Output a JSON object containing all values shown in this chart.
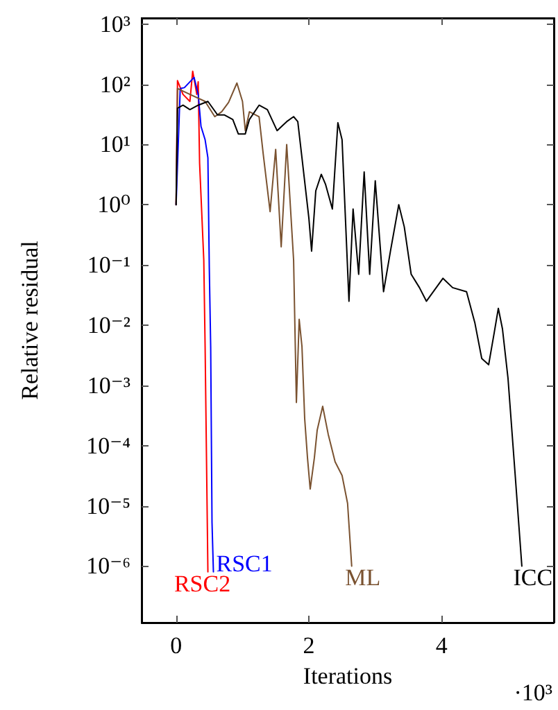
{
  "chart_data": {
    "type": "line",
    "xlabel": "Iterations",
    "ylabel": "Relative residual",
    "log": "y",
    "grid": false,
    "legend": false,
    "marker": "none",
    "line_style": "solid",
    "xlim": [
      -0.52,
      5.69
    ],
    "xticks": [
      0,
      2,
      4
    ],
    "ylim": [
      1.15e-07,
      1260
    ],
    "yticks": [
      {
        "value": 1e-06,
        "label": "10⁻⁶"
      },
      {
        "value": 1e-05,
        "label": "10⁻⁵"
      },
      {
        "value": 0.0001,
        "label": "10⁻⁴"
      },
      {
        "value": 0.001,
        "label": "10⁻³"
      },
      {
        "value": 0.01,
        "label": "10⁻²"
      },
      {
        "value": 0.1,
        "label": "10⁻¹"
      },
      {
        "value": 1,
        "label": "10⁰"
      },
      {
        "value": 10,
        "label": "10¹"
      },
      {
        "value": 100,
        "label": "10²"
      },
      {
        "value": 1000,
        "label": "10³"
      }
    ],
    "annotations": [
      "·10³"
    ],
    "series": [
      {
        "name": "ICC",
        "color": "#000000",
        "x": [
          0,
          0.021,
          0.104,
          0.208,
          0.333,
          0.479,
          0.625,
          0.729,
          0.854,
          0.937,
          1.042,
          1.104,
          1.25,
          1.375,
          1.521,
          1.666,
          1.77,
          1.833,
          1.896,
          2.0,
          2.041,
          2.104,
          2.187,
          2.25,
          2.354,
          2.437,
          2.5,
          2.604,
          2.666,
          2.75,
          2.833,
          2.916,
          3.0,
          3.125,
          3.229,
          3.354,
          3.437,
          3.541,
          3.666,
          3.771,
          4.02,
          4.166,
          4.375,
          4.5,
          4.604,
          4.708,
          4.791,
          4.854,
          4.916,
          5.0,
          5.104,
          5.208
        ],
        "values": [
          1,
          40,
          45,
          38,
          45,
          52,
          31,
          31,
          26,
          15,
          15,
          26,
          45,
          38,
          17,
          24,
          29,
          24,
          6,
          0.6,
          0.17,
          1.7,
          3.2,
          2.2,
          0.85,
          23,
          12,
          0.025,
          0.85,
          0.07,
          3.5,
          0.07,
          2.5,
          0.036,
          0.17,
          1,
          0.43,
          0.07,
          0.042,
          0.025,
          0.06,
          0.042,
          0.036,
          0.011,
          0.0028,
          0.0022,
          0.0074,
          0.019,
          0.0087,
          0.0013,
          3.7e-05,
          1e-06
        ]
      },
      {
        "name": "ML",
        "color": "#7a5230",
        "x": [
          0,
          0.021,
          0.208,
          0.437,
          0.583,
          0.687,
          0.791,
          0.916,
          1.0,
          1.042,
          1.104,
          1.25,
          1.312,
          1.416,
          1.5,
          1.583,
          1.666,
          1.77,
          1.812,
          1.854,
          1.896,
          1.937,
          1.979,
          2.02,
          2.083,
          2.125,
          2.208,
          2.291,
          2.395,
          2.5,
          2.583,
          2.645
        ],
        "values": [
          1,
          85,
          68,
          52,
          29,
          35,
          50,
          105,
          52,
          17,
          35,
          29,
          7,
          0.77,
          8.3,
          0.2,
          10,
          0.12,
          0.00052,
          0.0125,
          0.0044,
          0.00028,
          6.3e-05,
          1.9e-05,
          6.3e-05,
          0.00018,
          0.00045,
          0.000155,
          5.4e-05,
          3.2e-05,
          1.1e-05,
          1e-06
        ]
      },
      {
        "name": "RSC1",
        "color": "#0000ff",
        "x": [
          0,
          0.062,
          0.125,
          0.271,
          0.333,
          0.375,
          0.437,
          0.479,
          0.5,
          0.521,
          0.541,
          0.562
        ],
        "values": [
          1,
          85,
          88,
          130,
          68,
          20,
          12,
          6,
          0.09,
          0.0044,
          5.3e-06,
          8e-07
        ]
      },
      {
        "name": "RSC2",
        "color": "#ff0000",
        "x": [
          0,
          0.021,
          0.104,
          0.208,
          0.25,
          0.312,
          0.333,
          0.354,
          0.417,
          0.437,
          0.479
        ],
        "values": [
          1,
          115,
          68,
          52,
          165,
          68,
          110,
          4.9,
          0.12,
          0.0044,
          8e-07
        ]
      }
    ]
  }
}
